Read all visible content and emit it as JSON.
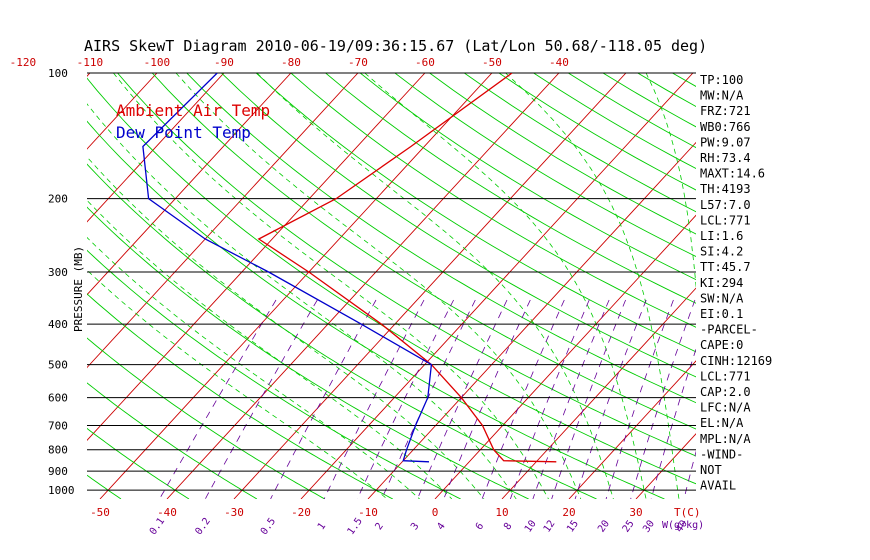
{
  "chart_data": {
    "type": "line",
    "title": "AIRS SkewT Diagram 2010-06-19/09:36:15.67 (Lat/Lon 50.68/-118.05 deg)",
    "ylabel": "PRESSURE (MB)",
    "xlabel_bottom": "T(C)",
    "xlabel_mixing": "W(g/kg)",
    "pressure_ticks": [
      "100",
      "200",
      "300",
      "400",
      "500",
      "600",
      "700",
      "800",
      "900",
      "1000"
    ],
    "pressure_levels": [
      100,
      200,
      300,
      400,
      500,
      600,
      700,
      800,
      900,
      1000
    ],
    "top_temp_ticks": [
      "-120",
      "-110",
      "-100",
      "-90",
      "-80",
      "-70",
      "-60",
      "-50",
      "-40"
    ],
    "bottom_temp_ticks": [
      "-50",
      "-40",
      "-30",
      "-20",
      "-10",
      "0",
      "10",
      "20",
      "30"
    ],
    "mixing_ratio_ticks": [
      "0.1",
      "0.2",
      "0.5",
      "1",
      "1.5",
      "2",
      "3",
      "4",
      "6",
      "8",
      "10",
      "12",
      "15",
      "20",
      "25",
      "30",
      "40"
    ],
    "legend": [
      "Ambient Air Temp",
      "Dew Point Temp"
    ],
    "colors": {
      "temperature": "#dd0000",
      "dewpoint": "#0000cc",
      "isotherm": "#cc0000",
      "dry_adiabat": "#00cc00",
      "moist_adiabat": "#00cc00",
      "mixing_ratio": "#660099",
      "pressure_line": "#000000"
    },
    "series": [
      {
        "name": "Ambient Air Temp",
        "points": [
          {
            "p": 100,
            "t": -47
          },
          {
            "p": 150,
            "t": -52
          },
          {
            "p": 200,
            "t": -56
          },
          {
            "p": 250,
            "t": -62
          },
          {
            "p": 300,
            "t": -50
          },
          {
            "p": 400,
            "t": -32
          },
          {
            "p": 500,
            "t": -19
          },
          {
            "p": 600,
            "t": -10
          },
          {
            "p": 700,
            "t": -3
          },
          {
            "p": 800,
            "t": 2
          },
          {
            "p": 850,
            "t": 5
          },
          {
            "p": 855,
            "t": 13
          }
        ]
      },
      {
        "name": "Dew Point Temp",
        "points": [
          {
            "p": 100,
            "t": -91
          },
          {
            "p": 150,
            "t": -92
          },
          {
            "p": 200,
            "t": -84
          },
          {
            "p": 250,
            "t": -70
          },
          {
            "p": 300,
            "t": -56
          },
          {
            "p": 400,
            "t": -35
          },
          {
            "p": 500,
            "t": -19
          },
          {
            "p": 600,
            "t": -15
          },
          {
            "p": 700,
            "t": -13
          },
          {
            "p": 800,
            "t": -11
          },
          {
            "p": 850,
            "t": -10
          },
          {
            "p": 855,
            "t": -6
          }
        ]
      }
    ],
    "stats": [
      "TP:100",
      "MW:N/A",
      "FRZ:721",
      "WB0:766",
      "PW:9.07",
      "RH:73.4",
      "MAXT:14.6",
      "TH:4193",
      "L57:7.0",
      "LCL:771",
      "LI:1.6",
      "SI:4.2",
      "TT:45.7",
      "KI:294",
      "SW:N/A",
      "EI:0.1",
      "-PARCEL-",
      "CAPE:0",
      "CINH:12169",
      "LCL:771",
      "CAP:2.0",
      "LFC:N/A",
      "EL:N/A",
      "MPL:N/A",
      "-WIND-",
      "NOT",
      "AVAIL"
    ]
  }
}
